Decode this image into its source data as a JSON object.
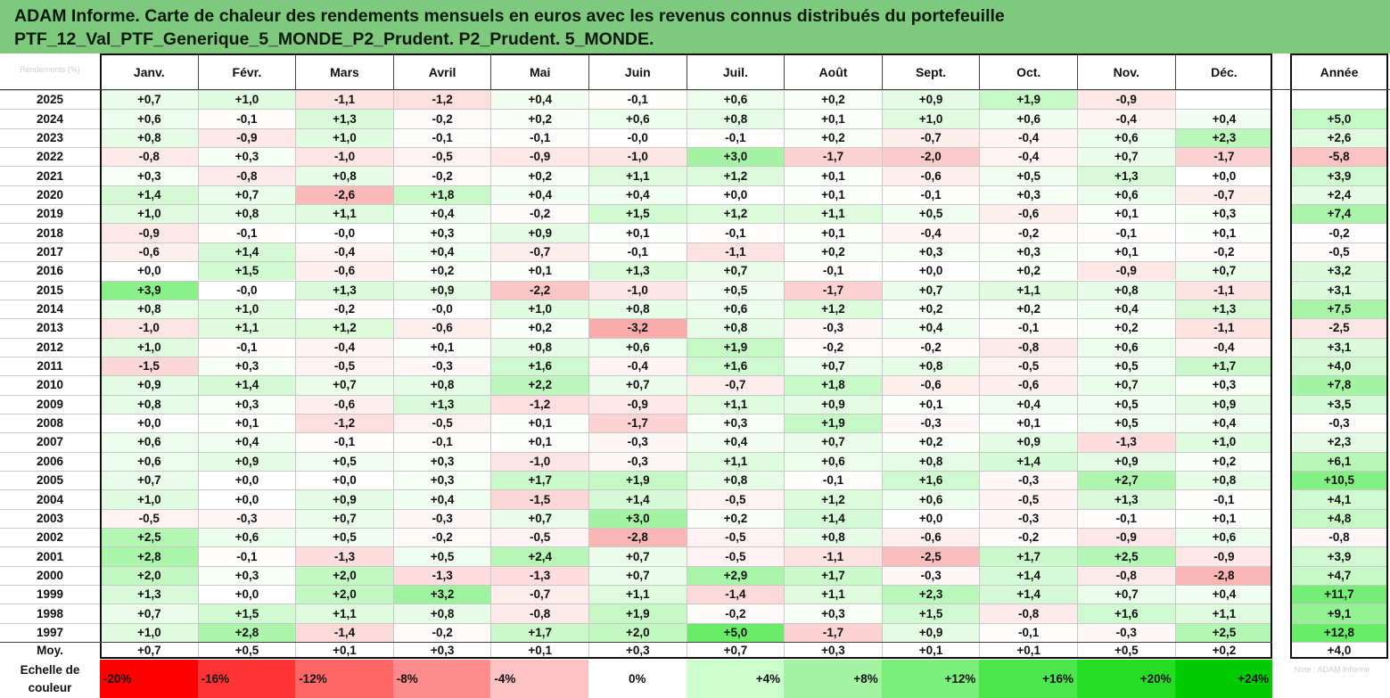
{
  "title": {
    "line1": "ADAM Informe. Carte de chaleur des rendements mensuels en euros avec les revenus connus distribués du portefeuille",
    "line2": "PTF_12_Val_PTF_Generique_5_MONDE_P2_Prudent. P2_Prudent. 5_MONDE."
  },
  "corner_label": "Rendements (%)",
  "chart_data": {
    "type": "heatmap",
    "months": [
      "Janv.",
      "Févr.",
      "Mars",
      "Avril",
      "Mai",
      "Juin",
      "Juil.",
      "Août",
      "Sept.",
      "Oct.",
      "Nov.",
      "Déc."
    ],
    "annual_header": "Année",
    "rows": [
      {
        "year": "2025",
        "values": [
          "+0,7",
          "+1,0",
          "-1,1",
          "-1,2",
          "+0,4",
          "-0,1",
          "+0,6",
          "+0,2",
          "+0,9",
          "+1,9",
          "-0,9",
          ""
        ],
        "annual": ""
      },
      {
        "year": "2024",
        "values": [
          "+0,6",
          "-0,1",
          "+1,3",
          "-0,2",
          "+0,2",
          "+0,6",
          "+0,8",
          "+0,1",
          "+1,0",
          "+0,6",
          "-0,4",
          "+0,4"
        ],
        "annual": "+5,0"
      },
      {
        "year": "2023",
        "values": [
          "+0,8",
          "-0,9",
          "+1,0",
          "-0,1",
          "-0,1",
          "-0,0",
          "-0,1",
          "+0,2",
          "-0,7",
          "-0,4",
          "+0,6",
          "+2,3"
        ],
        "annual": "+2,6"
      },
      {
        "year": "2022",
        "values": [
          "-0,8",
          "+0,3",
          "-1,0",
          "-0,5",
          "-0,9",
          "-1,0",
          "+3,0",
          "-1,7",
          "-2,0",
          "-0,4",
          "+0,7",
          "-1,7"
        ],
        "annual": "-5,8"
      },
      {
        "year": "2021",
        "values": [
          "+0,3",
          "-0,8",
          "+0,8",
          "-0,2",
          "+0,2",
          "+1,1",
          "+1,2",
          "+0,1",
          "-0,6",
          "+0,5",
          "+1,3",
          "+0,0"
        ],
        "annual": "+3,9"
      },
      {
        "year": "2020",
        "values": [
          "+1,4",
          "+0,7",
          "-2,6",
          "+1,8",
          "+0,4",
          "+0,4",
          "+0,0",
          "+0,1",
          "-0,1",
          "+0,3",
          "+0,6",
          "-0,7"
        ],
        "annual": "+2,4"
      },
      {
        "year": "2019",
        "values": [
          "+1,0",
          "+0,8",
          "+1,1",
          "+0,4",
          "-0,2",
          "+1,5",
          "+1,2",
          "+1,1",
          "+0,5",
          "-0,6",
          "+0,1",
          "+0,3"
        ],
        "annual": "+7,4"
      },
      {
        "year": "2018",
        "values": [
          "-0,9",
          "-0,1",
          "-0,0",
          "+0,3",
          "+0,9",
          "+0,1",
          "-0,1",
          "+0,1",
          "-0,4",
          "-0,2",
          "-0,1",
          "+0,1"
        ],
        "annual": "-0,2"
      },
      {
        "year": "2017",
        "values": [
          "-0,6",
          "+1,4",
          "-0,4",
          "+0,4",
          "-0,7",
          "-0,1",
          "-1,1",
          "+0,2",
          "+0,3",
          "+0,3",
          "+0,1",
          "-0,2"
        ],
        "annual": "-0,5"
      },
      {
        "year": "2016",
        "values": [
          "+0,0",
          "+1,5",
          "-0,6",
          "+0,2",
          "+0,1",
          "+1,3",
          "+0,7",
          "-0,1",
          "+0,0",
          "+0,2",
          "-0,9",
          "+0,7"
        ],
        "annual": "+3,2"
      },
      {
        "year": "2015",
        "values": [
          "+3,9",
          "-0,0",
          "+1,3",
          "+0,9",
          "-2,2",
          "-1,0",
          "+0,5",
          "-1,7",
          "+0,7",
          "+1,1",
          "+0,8",
          "-1,1"
        ],
        "annual": "+3,1"
      },
      {
        "year": "2014",
        "values": [
          "+0,8",
          "+1,0",
          "-0,2",
          "-0,0",
          "+1,0",
          "+0,8",
          "+0,6",
          "+1,2",
          "+0,2",
          "+0,2",
          "+0,4",
          "+1,3"
        ],
        "annual": "+7,5"
      },
      {
        "year": "2013",
        "values": [
          "-1,0",
          "+1,1",
          "+1,2",
          "-0,6",
          "+0,2",
          "-3,2",
          "+0,8",
          "-0,3",
          "+0,4",
          "-0,1",
          "+0,2",
          "-1,1"
        ],
        "annual": "-2,5"
      },
      {
        "year": "2012",
        "values": [
          "+1,0",
          "-0,1",
          "-0,4",
          "+0,1",
          "+0,8",
          "+0,6",
          "+1,9",
          "-0,2",
          "-0,2",
          "-0,8",
          "+0,6",
          "-0,4"
        ],
        "annual": "+3,1"
      },
      {
        "year": "2011",
        "values": [
          "-1,5",
          "+0,3",
          "-0,5",
          "-0,3",
          "+1,6",
          "-0,4",
          "+1,6",
          "+0,7",
          "+0,8",
          "-0,5",
          "+0,5",
          "+1,7"
        ],
        "annual": "+4,0"
      },
      {
        "year": "2010",
        "values": [
          "+0,9",
          "+1,4",
          "+0,7",
          "+0,8",
          "+2,2",
          "+0,7",
          "-0,7",
          "+1,8",
          "-0,6",
          "-0,6",
          "+0,7",
          "+0,3"
        ],
        "annual": "+7,8"
      },
      {
        "year": "2009",
        "values": [
          "+0,8",
          "+0,3",
          "-0,6",
          "+1,3",
          "-1,2",
          "-0,9",
          "+1,1",
          "+0,9",
          "+0,1",
          "+0,4",
          "+0,5",
          "+0,9"
        ],
        "annual": "+3,5"
      },
      {
        "year": "2008",
        "values": [
          "+0,0",
          "+0,1",
          "-1,2",
          "-0,5",
          "+0,1",
          "-1,7",
          "+0,3",
          "+1,9",
          "-0,3",
          "+0,1",
          "+0,5",
          "+0,4"
        ],
        "annual": "-0,3"
      },
      {
        "year": "2007",
        "values": [
          "+0,6",
          "+0,4",
          "-0,1",
          "-0,1",
          "+0,1",
          "-0,3",
          "+0,4",
          "+0,7",
          "+0,2",
          "+0,9",
          "-1,3",
          "+1,0"
        ],
        "annual": "+2,3"
      },
      {
        "year": "2006",
        "values": [
          "+0,6",
          "+0,9",
          "+0,5",
          "+0,3",
          "-1,0",
          "-0,3",
          "+1,1",
          "+0,6",
          "+0,8",
          "+1,4",
          "+0,9",
          "+0,2"
        ],
        "annual": "+6,1"
      },
      {
        "year": "2005",
        "values": [
          "+0,7",
          "+0,0",
          "+0,0",
          "+0,3",
          "+1,7",
          "+1,9",
          "+0,8",
          "-0,1",
          "+1,6",
          "-0,3",
          "+2,7",
          "+0,8"
        ],
        "annual": "+10,5"
      },
      {
        "year": "2004",
        "values": [
          "+1,0",
          "+0,0",
          "+0,9",
          "+0,4",
          "-1,5",
          "+1,4",
          "-0,5",
          "+1,2",
          "+0,6",
          "-0,5",
          "+1,3",
          "-0,1"
        ],
        "annual": "+4,1"
      },
      {
        "year": "2003",
        "values": [
          "-0,5",
          "-0,3",
          "+0,7",
          "-0,3",
          "+0,7",
          "+3,0",
          "+0,2",
          "+1,4",
          "+0,0",
          "-0,3",
          "-0,1",
          "+0,1"
        ],
        "annual": "+4,8"
      },
      {
        "year": "2002",
        "values": [
          "+2,5",
          "+0,6",
          "+0,5",
          "-0,2",
          "-0,5",
          "-2,8",
          "-0,5",
          "+0,8",
          "-0,6",
          "-0,2",
          "-0,9",
          "+0,6"
        ],
        "annual": "-0,8"
      },
      {
        "year": "2001",
        "values": [
          "+2,8",
          "-0,1",
          "-1,3",
          "+0,5",
          "+2,4",
          "+0,7",
          "-0,5",
          "-1,1",
          "-2,5",
          "+1,7",
          "+2,5",
          "-0,9"
        ],
        "annual": "+3,9"
      },
      {
        "year": "2000",
        "values": [
          "+2,0",
          "+0,3",
          "+2,0",
          "-1,3",
          "-1,3",
          "+0,7",
          "+2,9",
          "+1,7",
          "-0,3",
          "+1,4",
          "-0,8",
          "-2,8"
        ],
        "annual": "+4,7"
      },
      {
        "year": "1999",
        "values": [
          "+1,3",
          "+0,0",
          "+2,0",
          "+3,2",
          "-0,7",
          "+1,1",
          "-1,4",
          "+1,1",
          "+2,3",
          "+1,4",
          "+0,7",
          "+0,4"
        ],
        "annual": "+11,7"
      },
      {
        "year": "1998",
        "values": [
          "+0,7",
          "+1,5",
          "+1,1",
          "+0,8",
          "-0,8",
          "+1,9",
          "-0,2",
          "+0,3",
          "+1,5",
          "-0,8",
          "+1,6",
          "+1,1"
        ],
        "annual": "+9,1"
      },
      {
        "year": "1997",
        "values": [
          "+1,0",
          "+2,8",
          "-1,4",
          "-0,2",
          "+1,7",
          "+2,0",
          "+5,0",
          "-1,7",
          "+0,9",
          "-0,1",
          "-0,3",
          "+2,5"
        ],
        "annual": "+12,8"
      }
    ],
    "average": {
      "label": "Moy.",
      "values": [
        "+0,7",
        "+0,5",
        "+0,1",
        "+0,3",
        "+0,1",
        "+0,3",
        "+0,7",
        "+0,3",
        "+0,1",
        "+0,1",
        "+0,5",
        "+0,2"
      ],
      "annual": "+4,0"
    },
    "scale": {
      "label_line1": "Echelle de",
      "label_line2": "couleur",
      "steps": [
        {
          "label": "-20%",
          "color": "#ff0000"
        },
        {
          "label": "-16%",
          "color": "#ff3333"
        },
        {
          "label": "-12%",
          "color": "#ff6666"
        },
        {
          "label": "-8%",
          "color": "#ff8c8c"
        },
        {
          "label": "-4%",
          "color": "#ffc2c2"
        },
        {
          "label": "0%",
          "color": "#ffffff"
        },
        {
          "label": "+4%",
          "color": "#ccffcc"
        },
        {
          "label": "+8%",
          "color": "#a3f5a3"
        },
        {
          "label": "+12%",
          "color": "#7af07a"
        },
        {
          "label": "+16%",
          "color": "#4ce64c"
        },
        {
          "label": "+20%",
          "color": "#26dd26"
        },
        {
          "label": "+24%",
          "color": "#00cc00"
        }
      ],
      "note": "Note : ADAM Informe"
    },
    "colors": {
      "title_bg": "#7ec97e",
      "positive": "#00cc00",
      "negative": "#ff0000",
      "neutral": "#ffffff"
    }
  }
}
